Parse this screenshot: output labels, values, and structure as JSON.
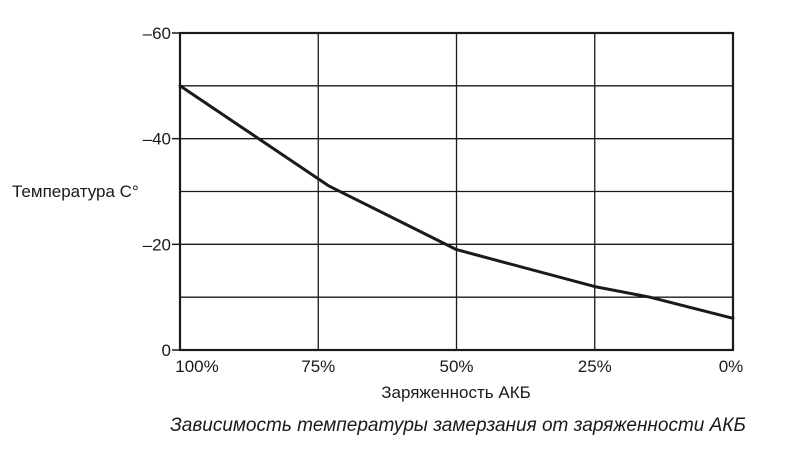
{
  "chart_data": {
    "type": "line",
    "title": "",
    "caption": "Зависимость температуры замерзания от заряженности АКБ",
    "xlabel": "Заряженность АКБ",
    "ylabel": "Температура С°",
    "x_categories": [
      "100%",
      "75%",
      "50%",
      "25%",
      "0%"
    ],
    "x_values": [
      100,
      75,
      50,
      25,
      0
    ],
    "xlim": [
      100,
      0
    ],
    "y_tick_values": [
      -60,
      -40,
      -20,
      0
    ],
    "y_tick_labels": [
      "–60",
      "–40",
      "–20",
      "0"
    ],
    "ylim": [
      0,
      -60
    ],
    "y_gridlines": [
      -60,
      -50,
      -40,
      -30,
      -20,
      -10,
      0
    ],
    "grid": true,
    "series": [
      {
        "x": [
          100,
          73,
          50,
          25,
          15,
          0
        ],
        "y": [
          -50,
          -31,
          -19,
          -12,
          -10,
          -6
        ]
      }
    ],
    "line_color": "#1a1a1a"
  }
}
